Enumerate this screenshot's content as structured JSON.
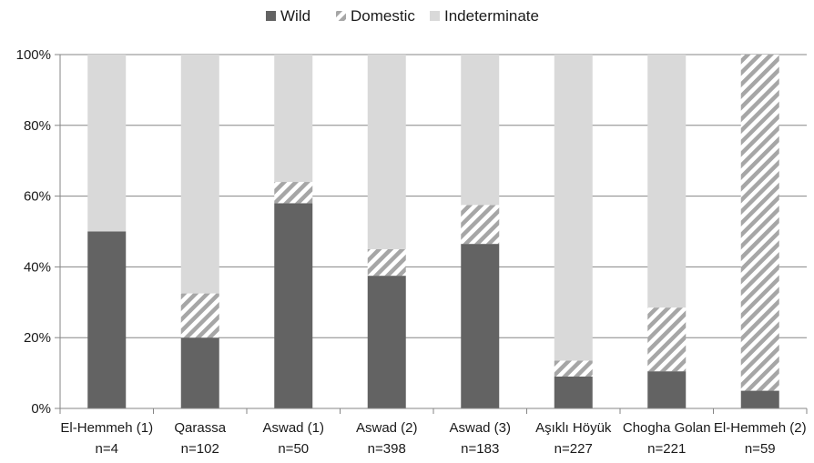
{
  "chart_data": {
    "type": "bar",
    "stacked": true,
    "percent": true,
    "categories": [
      [
        "El-Hemmeh (1)",
        "n=4"
      ],
      [
        "Qarassa",
        "n=102"
      ],
      [
        "Aswad (1)",
        "n=50"
      ],
      [
        "Aswad (2)",
        "n=398"
      ],
      [
        "Aswad (3)",
        "n=183"
      ],
      [
        "Aşıklı Höyük",
        "n=227"
      ],
      [
        "Chogha Golan",
        "n=221"
      ],
      [
        "El-Hemmeh (2)",
        "n=59"
      ]
    ],
    "series": [
      {
        "name": "Wild",
        "color": "#636363",
        "pattern": "solid",
        "values": [
          50,
          20,
          58,
          37.5,
          46.5,
          9,
          10.5,
          5
        ]
      },
      {
        "name": "Domestic",
        "color": "#a6a6a6",
        "pattern": "diagonal-stripes",
        "values": [
          0,
          12.5,
          6,
          7.5,
          11,
          4.5,
          18,
          95
        ]
      },
      {
        "name": "Indeterminate",
        "color": "#d9d9d9",
        "pattern": "solid",
        "values": [
          50,
          67.5,
          36,
          55,
          42.5,
          86.5,
          71.5,
          0
        ]
      }
    ],
    "ylim": [
      0,
      100
    ],
    "yticks": [
      "0%",
      "20%",
      "40%",
      "60%",
      "80%",
      "100%"
    ],
    "grid": true,
    "legend_position": "top-center"
  }
}
